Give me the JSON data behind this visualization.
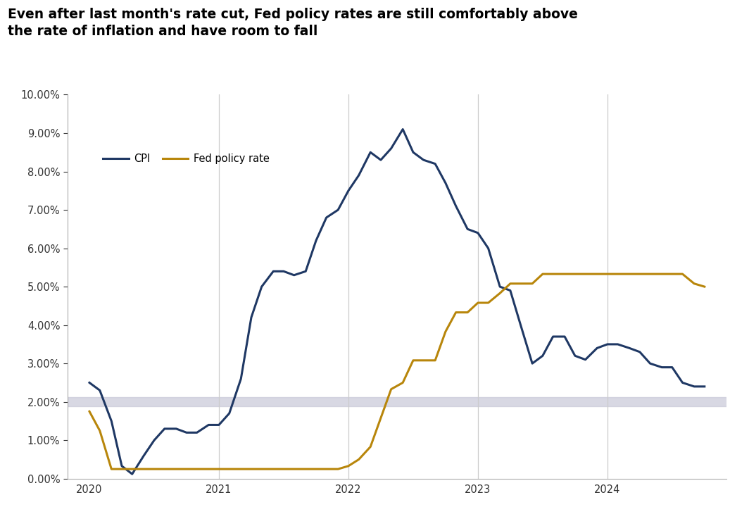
{
  "title_line1": "Even after last month's rate cut, Fed policy rates are still comfortably above",
  "title_line2": "the rate of inflation and have room to fall",
  "title_fontsize": 13.5,
  "background_color": "#ffffff",
  "cpi_color": "#1f3864",
  "fed_color": "#b8860b",
  "band_color": "#c8c8d8",
  "band_alpha": 0.7,
  "band_y_low": 1.88,
  "band_y_high": 2.12,
  "ylim": [
    0.0,
    10.0
  ],
  "yticks": [
    0.0,
    1.0,
    2.0,
    3.0,
    4.0,
    5.0,
    6.0,
    7.0,
    8.0,
    9.0,
    10.0
  ],
  "vlines_x": [
    2021.0,
    2022.0,
    2023.0,
    2024.0
  ],
  "vline_color": "#cccccc",
  "legend_labels": [
    "CPI",
    "Fed policy rate"
  ],
  "xlim_left": 2019.83,
  "xlim_right": 2024.92,
  "xticks": [
    2020,
    2021,
    2022,
    2023,
    2024
  ],
  "xticklabels": [
    "2020",
    "2021",
    "2022",
    "2023",
    "2024"
  ],
  "cpi_data": [
    [
      2020.0,
      2.5
    ],
    [
      2020.08,
      2.3
    ],
    [
      2020.17,
      1.5
    ],
    [
      2020.25,
      0.33
    ],
    [
      2020.33,
      0.12
    ],
    [
      2020.42,
      0.6
    ],
    [
      2020.5,
      1.0
    ],
    [
      2020.58,
      1.3
    ],
    [
      2020.67,
      1.3
    ],
    [
      2020.75,
      1.2
    ],
    [
      2020.83,
      1.2
    ],
    [
      2020.92,
      1.4
    ],
    [
      2021.0,
      1.4
    ],
    [
      2021.08,
      1.7
    ],
    [
      2021.17,
      2.6
    ],
    [
      2021.25,
      4.2
    ],
    [
      2021.33,
      5.0
    ],
    [
      2021.42,
      5.4
    ],
    [
      2021.5,
      5.4
    ],
    [
      2021.58,
      5.3
    ],
    [
      2021.67,
      5.4
    ],
    [
      2021.75,
      6.2
    ],
    [
      2021.83,
      6.8
    ],
    [
      2021.92,
      7.0
    ],
    [
      2022.0,
      7.5
    ],
    [
      2022.08,
      7.9
    ],
    [
      2022.17,
      8.5
    ],
    [
      2022.25,
      8.3
    ],
    [
      2022.33,
      8.6
    ],
    [
      2022.42,
      9.1
    ],
    [
      2022.5,
      8.5
    ],
    [
      2022.58,
      8.3
    ],
    [
      2022.67,
      8.2
    ],
    [
      2022.75,
      7.7
    ],
    [
      2022.83,
      7.1
    ],
    [
      2022.92,
      6.5
    ],
    [
      2023.0,
      6.4
    ],
    [
      2023.08,
      6.0
    ],
    [
      2023.17,
      5.0
    ],
    [
      2023.25,
      4.9
    ],
    [
      2023.33,
      4.0
    ],
    [
      2023.42,
      3.0
    ],
    [
      2023.5,
      3.2
    ],
    [
      2023.58,
      3.7
    ],
    [
      2023.67,
      3.7
    ],
    [
      2023.75,
      3.2
    ],
    [
      2023.83,
      3.1
    ],
    [
      2023.92,
      3.4
    ],
    [
      2024.0,
      3.5
    ],
    [
      2024.08,
      3.5
    ],
    [
      2024.17,
      3.4
    ],
    [
      2024.25,
      3.3
    ],
    [
      2024.33,
      3.0
    ],
    [
      2024.42,
      2.9
    ],
    [
      2024.5,
      2.9
    ],
    [
      2024.58,
      2.5
    ],
    [
      2024.67,
      2.4
    ],
    [
      2024.75,
      2.4
    ]
  ],
  "fed_data": [
    [
      2020.0,
      1.75
    ],
    [
      2020.08,
      1.25
    ],
    [
      2020.17,
      0.25
    ],
    [
      2020.25,
      0.25
    ],
    [
      2020.33,
      0.25
    ],
    [
      2020.42,
      0.25
    ],
    [
      2020.5,
      0.25
    ],
    [
      2020.58,
      0.25
    ],
    [
      2020.67,
      0.25
    ],
    [
      2020.75,
      0.25
    ],
    [
      2020.83,
      0.25
    ],
    [
      2020.92,
      0.25
    ],
    [
      2021.0,
      0.25
    ],
    [
      2021.08,
      0.25
    ],
    [
      2021.17,
      0.25
    ],
    [
      2021.25,
      0.25
    ],
    [
      2021.33,
      0.25
    ],
    [
      2021.42,
      0.25
    ],
    [
      2021.5,
      0.25
    ],
    [
      2021.58,
      0.25
    ],
    [
      2021.67,
      0.25
    ],
    [
      2021.75,
      0.25
    ],
    [
      2021.83,
      0.25
    ],
    [
      2021.92,
      0.25
    ],
    [
      2022.0,
      0.33
    ],
    [
      2022.08,
      0.5
    ],
    [
      2022.17,
      0.83
    ],
    [
      2022.25,
      1.58
    ],
    [
      2022.33,
      2.33
    ],
    [
      2022.42,
      2.5
    ],
    [
      2022.5,
      3.08
    ],
    [
      2022.58,
      3.08
    ],
    [
      2022.67,
      3.08
    ],
    [
      2022.75,
      3.83
    ],
    [
      2022.83,
      4.33
    ],
    [
      2022.92,
      4.33
    ],
    [
      2023.0,
      4.58
    ],
    [
      2023.08,
      4.58
    ],
    [
      2023.17,
      4.83
    ],
    [
      2023.25,
      5.08
    ],
    [
      2023.33,
      5.08
    ],
    [
      2023.42,
      5.08
    ],
    [
      2023.5,
      5.33
    ],
    [
      2023.58,
      5.33
    ],
    [
      2023.67,
      5.33
    ],
    [
      2023.75,
      5.33
    ],
    [
      2023.83,
      5.33
    ],
    [
      2023.92,
      5.33
    ],
    [
      2024.0,
      5.33
    ],
    [
      2024.08,
      5.33
    ],
    [
      2024.17,
      5.33
    ],
    [
      2024.25,
      5.33
    ],
    [
      2024.33,
      5.33
    ],
    [
      2024.42,
      5.33
    ],
    [
      2024.5,
      5.33
    ],
    [
      2024.58,
      5.33
    ],
    [
      2024.67,
      5.08
    ],
    [
      2024.75,
      5.0
    ]
  ]
}
